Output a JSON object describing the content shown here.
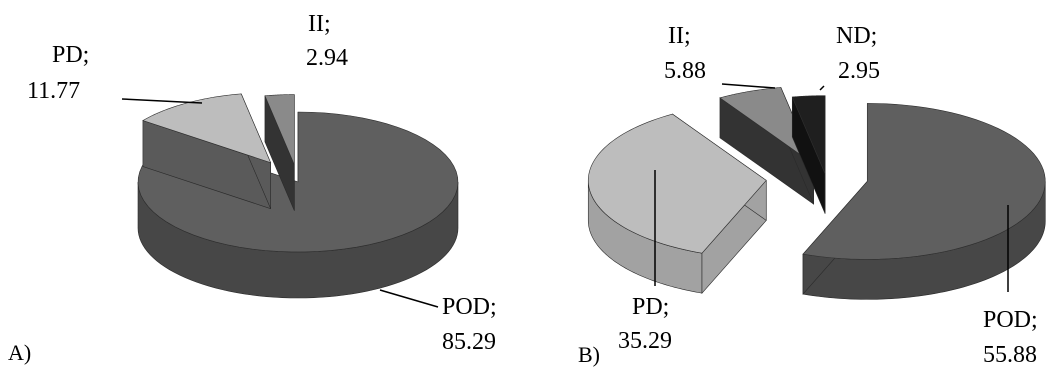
{
  "chart_data": [
    {
      "type": "pie",
      "panel_label": "A)",
      "slices": [
        {
          "name": "POD",
          "value": 85.29,
          "label_name": "POD;",
          "label_value": "85.29",
          "color": "#5f5f5f",
          "side_color": "#474747"
        },
        {
          "name": "PD",
          "value": 11.77,
          "label_name": "PD;",
          "label_value": "11.77",
          "color": "#bdbdbd",
          "side_color": "#5a5a5a"
        },
        {
          "name": "II",
          "value": 2.94,
          "label_name": "II;",
          "label_value": "2.94",
          "color": "#8a8a8a",
          "side_color": "#333333"
        }
      ]
    },
    {
      "type": "pie",
      "panel_label": "B)",
      "slices": [
        {
          "name": "POD",
          "value": 55.88,
          "label_name": "POD;",
          "label_value": "55.88",
          "color": "#5f5f5f",
          "side_color": "#474747"
        },
        {
          "name": "PD",
          "value": 35.29,
          "label_name": "PD;",
          "label_value": "35.29",
          "color": "#bdbdbd",
          "side_color": "#a2a2a2"
        },
        {
          "name": "II",
          "value": 5.88,
          "label_name": "II;",
          "label_value": "5.88",
          "color": "#8a8a8a",
          "side_color": "#333333"
        },
        {
          "name": "ND",
          "value": 2.95,
          "label_name": "ND;",
          "label_value": "2.95",
          "color": "#1f1f1f",
          "side_color": "#111111"
        }
      ]
    }
  ]
}
